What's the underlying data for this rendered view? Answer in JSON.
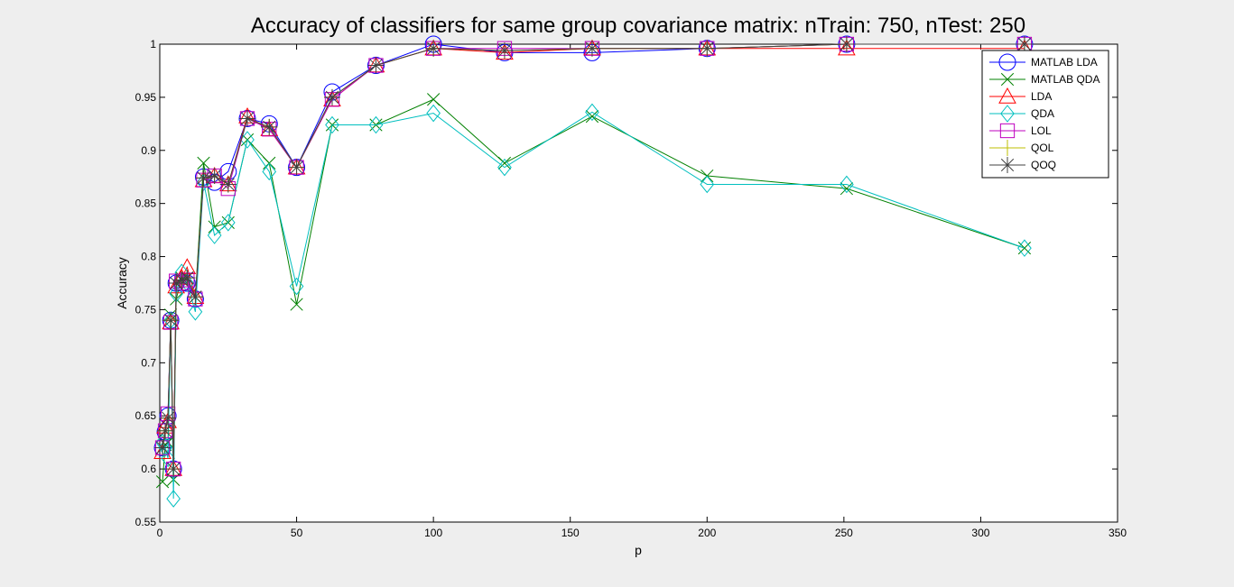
{
  "chart_data": {
    "type": "line",
    "title": "Accuracy of classifiers for same group covariance matrix: nTrain: 750, nTest: 250",
    "xlabel": "p",
    "ylabel": "Accuracy",
    "xlim": [
      0,
      350
    ],
    "ylim": [
      0.55,
      1
    ],
    "xticks": [
      "0",
      "50",
      "100",
      "150",
      "200",
      "250",
      "300",
      "350"
    ],
    "yticks": [
      "0.55",
      "0.6",
      "0.65",
      "0.7",
      "0.75",
      "0.8",
      "0.85",
      "0.9",
      "0.95",
      "1"
    ],
    "grid": false,
    "legend_position": "top-right",
    "x": [
      1,
      2,
      3,
      4,
      5,
      6,
      8,
      10,
      13,
      16,
      20,
      25,
      32,
      40,
      50,
      63,
      79,
      100,
      126,
      158,
      200,
      251,
      316
    ],
    "series": [
      {
        "name": "MATLAB LDA",
        "color": "#0000ff",
        "marker": "circle",
        "values": [
          0.62,
          0.635,
          0.65,
          0.74,
          0.6,
          0.775,
          0.775,
          0.775,
          0.76,
          0.875,
          0.87,
          0.88,
          0.93,
          0.925,
          0.884,
          0.955,
          0.98,
          1.0,
          0.992,
          0.992,
          0.996,
          1.0,
          1.0
        ]
      },
      {
        "name": "MATLAB QDA",
        "color": "#008000",
        "marker": "x",
        "values": [
          0.588,
          0.623,
          0.625,
          0.745,
          0.59,
          0.76,
          0.78,
          0.78,
          0.762,
          0.888,
          0.828,
          0.832,
          0.91,
          0.888,
          0.755,
          0.924,
          0.924,
          0.948,
          0.888,
          0.932,
          0.876,
          0.864,
          0.808
        ]
      },
      {
        "name": "LDA",
        "color": "#ff0000",
        "marker": "triangle",
        "values": [
          0.616,
          0.64,
          0.645,
          0.738,
          0.6,
          0.772,
          0.78,
          0.79,
          0.762,
          0.872,
          0.876,
          0.868,
          0.932,
          0.92,
          0.884,
          0.948,
          0.98,
          0.996,
          0.992,
          0.996,
          0.996,
          0.996,
          0.996
        ]
      },
      {
        "name": "QDA",
        "color": "#00bfbf",
        "marker": "diamond",
        "values": [
          0.625,
          0.62,
          0.61,
          0.74,
          0.572,
          0.765,
          0.785,
          0.775,
          0.748,
          0.87,
          0.82,
          0.832,
          0.91,
          0.88,
          0.772,
          0.924,
          0.924,
          0.935,
          0.884,
          0.936,
          0.868,
          0.868,
          0.808
        ]
      },
      {
        "name": "LOL",
        "color": "#bf00bf",
        "marker": "square",
        "values": [
          0.62,
          0.636,
          0.652,
          0.738,
          0.6,
          0.777,
          0.775,
          0.778,
          0.76,
          0.872,
          0.876,
          0.864,
          0.93,
          0.92,
          0.884,
          0.948,
          0.98,
          0.996,
          0.996,
          0.996,
          0.996,
          1.0,
          1.0
        ]
      },
      {
        "name": "QOL",
        "color": "#bfbf00",
        "marker": "plus",
        "values": [
          0.62,
          0.636,
          0.648,
          0.74,
          0.6,
          0.775,
          0.778,
          0.78,
          0.762,
          0.874,
          0.876,
          0.868,
          0.93,
          0.922,
          0.884,
          0.95,
          0.98,
          0.996,
          0.994,
          0.996,
          0.996,
          1.0,
          1.0
        ]
      },
      {
        "name": "QOQ",
        "color": "#404040",
        "marker": "asterisk",
        "values": [
          0.62,
          0.636,
          0.648,
          0.74,
          0.6,
          0.775,
          0.778,
          0.78,
          0.762,
          0.874,
          0.876,
          0.868,
          0.93,
          0.922,
          0.884,
          0.95,
          0.98,
          0.996,
          0.994,
          0.996,
          0.996,
          1.0,
          1.0
        ]
      }
    ]
  }
}
